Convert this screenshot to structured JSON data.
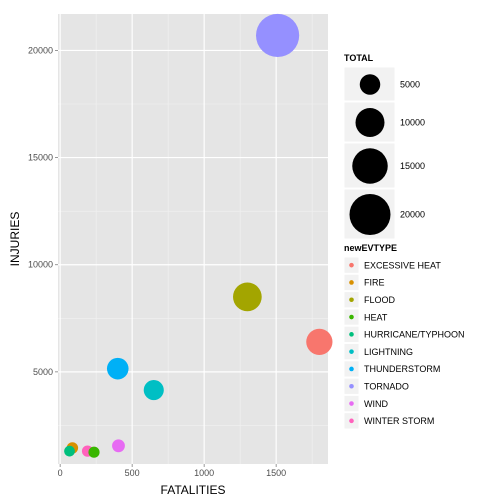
{
  "chart_data": {
    "type": "scatter",
    "xlabel": "FATALITIES",
    "ylabel": "INJURIES",
    "xlim": [
      -15,
      1860
    ],
    "ylim": [
      700,
      21700
    ],
    "xticks": [
      0,
      500,
      1000,
      1500
    ],
    "yticks": [
      5000,
      10000,
      15000,
      20000
    ],
    "x_tick_labels": [
      "0",
      "500",
      "1000",
      "1500"
    ],
    "y_tick_labels": [
      "5000",
      "10000",
      "15000",
      "20000"
    ],
    "grid": true,
    "legend_position": "right",
    "size_legend": {
      "title": "TOTAL",
      "values": [
        5000,
        10000,
        15000,
        20000
      ],
      "labels": [
        "5000",
        "10000",
        "15000",
        "20000"
      ]
    },
    "color_legend": {
      "title": "newEVTYPE"
    },
    "series": [
      {
        "name": "EXCESSIVE HEAT",
        "color": "#F8766D",
        "x": 1800,
        "y": 6400,
        "total": 8200
      },
      {
        "name": "FIRE",
        "color": "#D89000",
        "x": 85,
        "y": 1450,
        "total": 1550
      },
      {
        "name": "FLOOD",
        "color": "#A3A500",
        "x": 1300,
        "y": 8500,
        "total": 9800
      },
      {
        "name": "HEAT",
        "color": "#39B600",
        "x": 235,
        "y": 1250,
        "total": 1480
      },
      {
        "name": "HURRICANE/TYPHOON",
        "color": "#00BF7D",
        "x": 65,
        "y": 1300,
        "total": 1370
      },
      {
        "name": "LIGHTNING",
        "color": "#00BFC4",
        "x": 650,
        "y": 4150,
        "total": 4800
      },
      {
        "name": "THUNDERSTORM",
        "color": "#00B0F6",
        "x": 400,
        "y": 5150,
        "total": 5550
      },
      {
        "name": "TORNADO",
        "color": "#9590FF",
        "x": 1510,
        "y": 20700,
        "total": 22200
      },
      {
        "name": "WIND",
        "color": "#E76BF3",
        "x": 405,
        "y": 1550,
        "total": 1960
      },
      {
        "name": "WINTER STORM",
        "color": "#FF62BC",
        "x": 190,
        "y": 1300,
        "total": 1490
      }
    ]
  }
}
